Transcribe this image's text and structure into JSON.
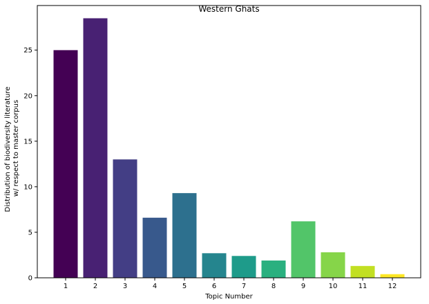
{
  "chart_data": {
    "type": "bar",
    "title": "Western Ghats",
    "xlabel": "Topic Number",
    "ylabel": [
      "Distribution of biodiversity literature",
      "w/ respect to master corpus"
    ],
    "categories": [
      "1",
      "2",
      "3",
      "4",
      "5",
      "6",
      "7",
      "8",
      "9",
      "10",
      "11",
      "12"
    ],
    "values": [
      25.0,
      28.5,
      13.0,
      6.6,
      9.3,
      2.7,
      2.4,
      1.9,
      6.2,
      2.8,
      1.3,
      0.4
    ],
    "ylim": [
      0,
      29.9
    ],
    "yticks": [
      0,
      5,
      10,
      15,
      20,
      25
    ],
    "grid": false,
    "colors": [
      "#440154",
      "#482173",
      "#433e85",
      "#38598c",
      "#2d708e",
      "#25858e",
      "#1e9b8a",
      "#2ab07f",
      "#52c569",
      "#86d549",
      "#c2df23",
      "#fde725"
    ]
  }
}
